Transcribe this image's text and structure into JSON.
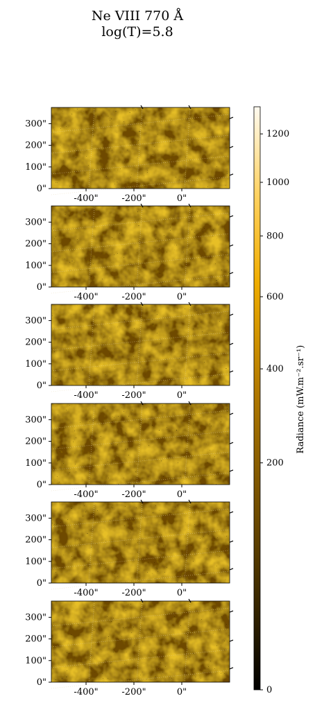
{
  "figure": {
    "title_line1": "Ne VIII 770 Å",
    "title_line2": "log(T)=5.8"
  },
  "panels": [
    {
      "name": "panel-1"
    },
    {
      "name": "panel-2"
    },
    {
      "name": "panel-3"
    },
    {
      "name": "panel-4"
    },
    {
      "name": "panel-5"
    },
    {
      "name": "panel-6"
    }
  ],
  "axes": {
    "x_ticks": [
      "-400\"",
      "-200\"",
      "0\""
    ],
    "x_tick_values": [
      -400,
      -200,
      0
    ],
    "x_range": [
      -545,
      200
    ],
    "y_ticks": [
      "0\"",
      "100\"",
      "200\"",
      "300\""
    ],
    "y_tick_values": [
      0,
      100,
      200,
      300
    ],
    "y_range": [
      0,
      375
    ]
  },
  "colorbar": {
    "label": "Radiance (mW.m⁻².sr⁻¹)",
    "tick_labels": [
      "0",
      "200",
      "400",
      "600",
      "800",
      "1000",
      "1200"
    ],
    "tick_values": [
      0,
      200,
      400,
      600,
      800,
      1000,
      1200
    ],
    "range": [
      0,
      1320
    ],
    "scale": "sqrt",
    "colors": [
      "#000000",
      "#3a2800",
      "#8a5e00",
      "#c98a00",
      "#f5b300",
      "#ffd975",
      "#fffaf0"
    ]
  }
}
